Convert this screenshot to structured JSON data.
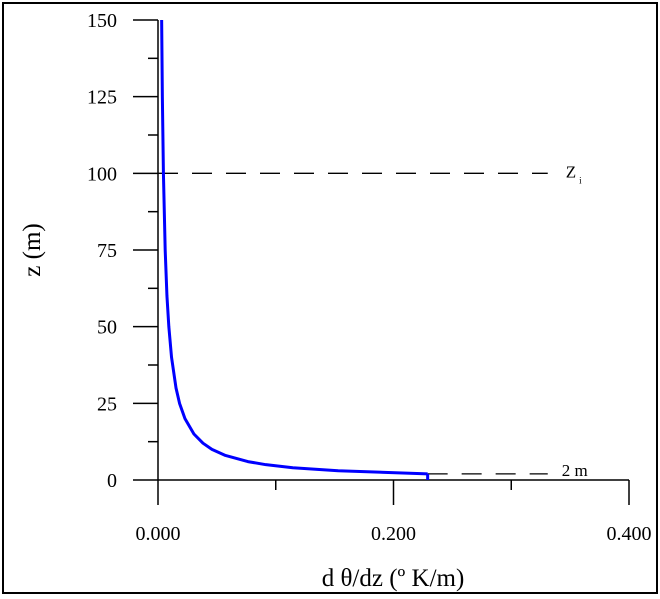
{
  "chart_data": {
    "type": "line",
    "title": "",
    "xlabel": "d θ/dz (º K/m)",
    "ylabel": "z (m)",
    "xlim": [
      0,
      0.4
    ],
    "ylim": [
      0,
      150
    ],
    "x_ticks": [
      "0.000",
      "0.200",
      "0.400"
    ],
    "x_tick_values": [
      0,
      0.2,
      0.4
    ],
    "x_minor_ticks": [
      0.1,
      0.3
    ],
    "y_ticks": [
      "0",
      "25",
      "50",
      "75",
      "100",
      "125",
      "150"
    ],
    "y_tick_values": [
      0,
      25,
      50,
      75,
      100,
      125,
      150
    ],
    "y_minor_step": 12.5,
    "grid": false,
    "series": [
      {
        "color": "#0000ff",
        "x": [
          0.229,
          0.153,
          0.1145,
          0.0916,
          0.0763,
          0.0573,
          0.0458,
          0.0382,
          0.0305,
          0.0229,
          0.0183,
          0.0153,
          0.0115,
          0.0092,
          0.0076,
          0.0061,
          0.0046,
          0.0037,
          0.0031
        ],
        "y": [
          2,
          3,
          4,
          5,
          6,
          8,
          10,
          12,
          15,
          20,
          25,
          30,
          40,
          50,
          60,
          75,
          100,
          125,
          150
        ]
      }
    ],
    "annotations": [
      {
        "label": "Z",
        "subscript": "i",
        "z": 100,
        "line": "dashed",
        "x_from": 0.0,
        "x_to": 0.331
      },
      {
        "label": "2 m",
        "z": 2,
        "line": "dashed",
        "x_from": 0.229,
        "x_to": 0.331
      }
    ]
  }
}
